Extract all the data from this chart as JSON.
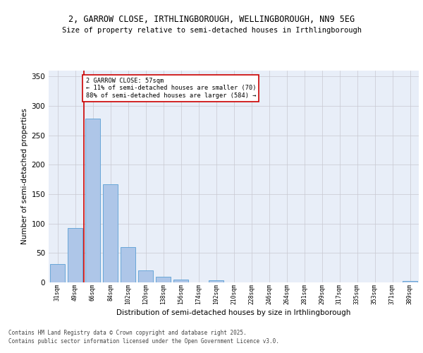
{
  "title1": "2, GARROW CLOSE, IRTHLINGBOROUGH, WELLINGBOROUGH, NN9 5EG",
  "title2": "Size of property relative to semi-detached houses in Irthlingborough",
  "xlabel": "Distribution of semi-detached houses by size in Irthlingborough",
  "ylabel": "Number of semi-detached properties",
  "categories": [
    "31sqm",
    "49sqm",
    "66sqm",
    "84sqm",
    "102sqm",
    "120sqm",
    "138sqm",
    "156sqm",
    "174sqm",
    "192sqm",
    "210sqm",
    "228sqm",
    "246sqm",
    "264sqm",
    "281sqm",
    "299sqm",
    "317sqm",
    "335sqm",
    "353sqm",
    "371sqm",
    "389sqm"
  ],
  "values": [
    31,
    93,
    278,
    167,
    60,
    21,
    10,
    5,
    0,
    4,
    0,
    0,
    0,
    0,
    0,
    0,
    0,
    0,
    0,
    0,
    3
  ],
  "bar_color": "#aec6e8",
  "bar_edge_color": "#5a9fd4",
  "property_line_x": 1.5,
  "annotation_box_line": "2 GARROW CLOSE: 57sqm",
  "annotation_line2": "← 11% of semi-detached houses are smaller (70)",
  "annotation_line3": "88% of semi-detached houses are larger (584) →",
  "red_line_color": "#cc0000",
  "box_edge_color": "#cc0000",
  "footer1": "Contains HM Land Registry data © Crown copyright and database right 2025.",
  "footer2": "Contains public sector information licensed under the Open Government Licence v3.0.",
  "ylim": [
    0,
    360
  ],
  "yticks": [
    0,
    50,
    100,
    150,
    200,
    250,
    300,
    350
  ],
  "background_color": "#e8eef8",
  "grid_color": "#c8c8d0",
  "title_fontsize": 8.5,
  "subtitle_fontsize": 7.5
}
